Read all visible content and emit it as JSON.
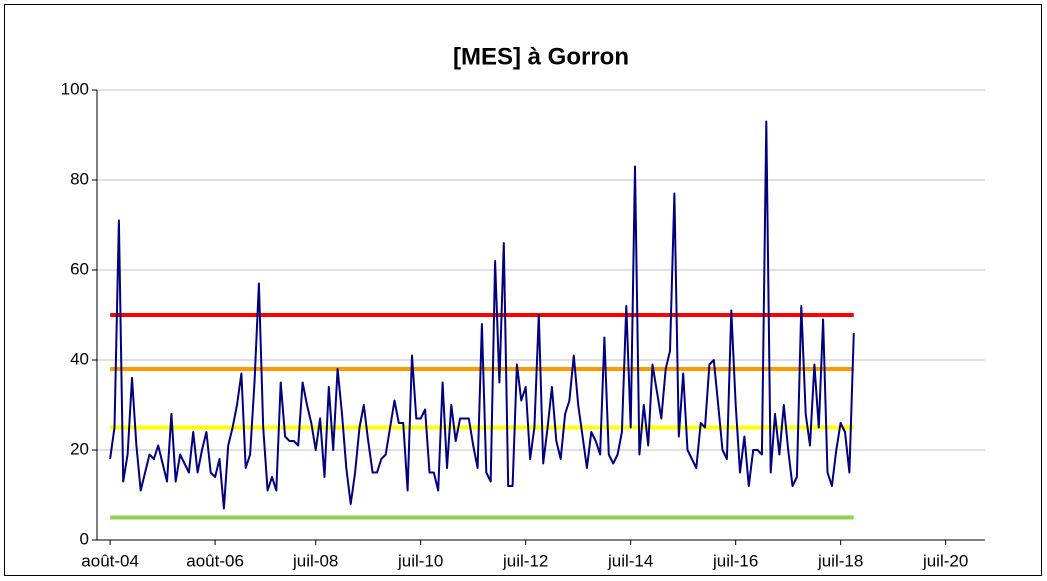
{
  "chart_data": {
    "type": "line",
    "title": "[MES] à Gorron",
    "x": [
      "2004-08",
      "2004-09",
      "2004-10",
      "2004-11",
      "2004-12",
      "2005-01",
      "2005-02",
      "2005-03",
      "2005-04",
      "2005-05",
      "2005-06",
      "2005-07",
      "2005-08",
      "2005-09",
      "2005-10",
      "2005-11",
      "2005-12",
      "2006-01",
      "2006-02",
      "2006-03",
      "2006-04",
      "2006-05",
      "2006-06",
      "2006-07",
      "2006-08",
      "2006-09",
      "2006-10",
      "2006-11",
      "2006-12",
      "2007-01",
      "2007-02",
      "2007-03",
      "2007-04",
      "2007-05",
      "2007-06",
      "2007-07",
      "2007-08",
      "2007-09",
      "2007-10",
      "2007-11",
      "2007-12",
      "2008-01",
      "2008-02",
      "2008-03",
      "2008-04",
      "2008-05",
      "2008-06",
      "2008-07",
      "2008-08",
      "2008-09",
      "2008-10",
      "2008-11",
      "2008-12",
      "2009-01",
      "2009-02",
      "2009-03",
      "2009-04",
      "2009-05",
      "2009-06",
      "2009-07",
      "2009-08",
      "2009-09",
      "2009-10",
      "2009-11",
      "2009-12",
      "2010-01",
      "2010-02",
      "2010-03",
      "2010-04",
      "2010-05",
      "2010-06",
      "2010-07",
      "2010-08",
      "2010-09",
      "2010-10",
      "2010-11",
      "2010-12",
      "2011-01",
      "2011-02",
      "2011-03",
      "2011-04",
      "2011-05",
      "2011-06",
      "2011-07",
      "2011-08",
      "2011-09",
      "2011-10",
      "2011-11",
      "2011-12",
      "2012-01",
      "2012-02",
      "2012-03",
      "2012-04",
      "2012-05",
      "2012-06",
      "2012-07",
      "2012-08",
      "2012-09",
      "2012-10",
      "2012-11",
      "2012-12",
      "2013-01",
      "2013-02",
      "2013-03",
      "2013-04",
      "2013-05",
      "2013-06",
      "2013-07",
      "2013-08",
      "2013-09",
      "2013-10",
      "2013-11",
      "2013-12",
      "2014-01",
      "2014-02",
      "2014-03",
      "2014-04",
      "2014-05",
      "2014-06",
      "2014-07",
      "2014-08",
      "2014-09",
      "2014-10",
      "2014-11",
      "2014-12",
      "2015-01",
      "2015-02",
      "2015-03",
      "2015-04",
      "2015-05",
      "2015-06",
      "2015-07",
      "2015-08",
      "2015-09",
      "2015-10",
      "2015-11",
      "2015-12",
      "2016-01",
      "2016-02",
      "2016-03",
      "2016-04",
      "2016-05",
      "2016-06",
      "2016-07",
      "2016-08",
      "2016-09",
      "2016-10",
      "2016-11",
      "2016-12",
      "2017-01",
      "2017-02",
      "2017-03",
      "2017-04",
      "2017-05",
      "2017-06",
      "2017-07",
      "2017-08",
      "2017-09",
      "2017-10",
      "2017-11",
      "2017-12",
      "2018-01",
      "2018-02",
      "2018-03",
      "2018-04",
      "2018-05",
      "2018-06",
      "2018-07",
      "2018-08",
      "2018-09",
      "2018-10"
    ],
    "series": [
      {
        "color": "#000080",
        "values": [
          18,
          25,
          71,
          13,
          19,
          36,
          21,
          11,
          15,
          19,
          18,
          21,
          17,
          13,
          28,
          13,
          19,
          17,
          15,
          24,
          15,
          20,
          24,
          15,
          14,
          18,
          7,
          21,
          25,
          30,
          37,
          16,
          19,
          35,
          57,
          25,
          11,
          14,
          11,
          35,
          23,
          22,
          22,
          21,
          35,
          30,
          26,
          20,
          27,
          14,
          34,
          20,
          38,
          28,
          16,
          8,
          15,
          25,
          30,
          22,
          15,
          15,
          18,
          19,
          25,
          31,
          26,
          26,
          11,
          41,
          27,
          27,
          29,
          15,
          15,
          11,
          35,
          16,
          30,
          22,
          27,
          27,
          27,
          21,
          16,
          48,
          15,
          13,
          62,
          35,
          66,
          12,
          12,
          39,
          31,
          34,
          18,
          25,
          50,
          17,
          25,
          34,
          22,
          18,
          28,
          31,
          41,
          30,
          23,
          16,
          24,
          22,
          19,
          45,
          19,
          17,
          19,
          24,
          52,
          25,
          83,
          19,
          30,
          21,
          39,
          33,
          27,
          38,
          42,
          77,
          23,
          37,
          20,
          18,
          16,
          26,
          25,
          39,
          40,
          30,
          20,
          18,
          51,
          30,
          15,
          23,
          12,
          20,
          20,
          19,
          93,
          15,
          28,
          19,
          30,
          20,
          12,
          14,
          52,
          28,
          21,
          39,
          25,
          49,
          15,
          12,
          20,
          26,
          24,
          15,
          46
        ]
      }
    ],
    "thresholds": [
      {
        "value": 50,
        "color": "#ff0000"
      },
      {
        "value": 38,
        "color": "#ff9900"
      },
      {
        "value": 25,
        "color": "#ffff00"
      },
      {
        "value": 5,
        "color": "#92d050"
      }
    ],
    "xlim": [
      "2004-05",
      "2021-04"
    ],
    "xticks": [
      {
        "value": "2004-08",
        "label": "août-04"
      },
      {
        "value": "2006-08",
        "label": "août-06"
      },
      {
        "value": "2008-07",
        "label": "juil-08"
      },
      {
        "value": "2010-07",
        "label": "juil-10"
      },
      {
        "value": "2012-07",
        "label": "juil-12"
      },
      {
        "value": "2014-07",
        "label": "juil-14"
      },
      {
        "value": "2016-07",
        "label": "juil-16"
      },
      {
        "value": "2018-07",
        "label": "juil-18"
      },
      {
        "value": "2020-07",
        "label": "juil-20"
      }
    ],
    "ylim": [
      0,
      100
    ],
    "yticks": [
      0,
      20,
      40,
      60,
      80,
      100
    ],
    "grid": true
  }
}
